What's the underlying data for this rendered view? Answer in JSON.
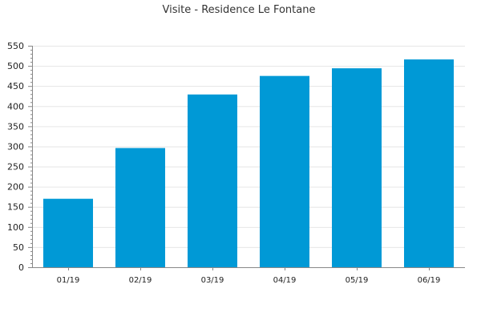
{
  "chart_data": {
    "type": "bar",
    "title": "Visite - Residence Le Fontane",
    "categories": [
      "01/19",
      "02/19",
      "03/19",
      "04/19",
      "05/19",
      "06/19"
    ],
    "values": [
      170,
      296,
      429,
      475,
      494,
      516
    ],
    "ylim": [
      0,
      550
    ],
    "yticks": [
      0,
      50,
      100,
      150,
      200,
      250,
      300,
      350,
      400,
      450,
      500,
      550
    ],
    "grid": true,
    "bar_color": "#0099d6",
    "grid_color": "#e6e6e6",
    "axis_color": "#888888"
  }
}
